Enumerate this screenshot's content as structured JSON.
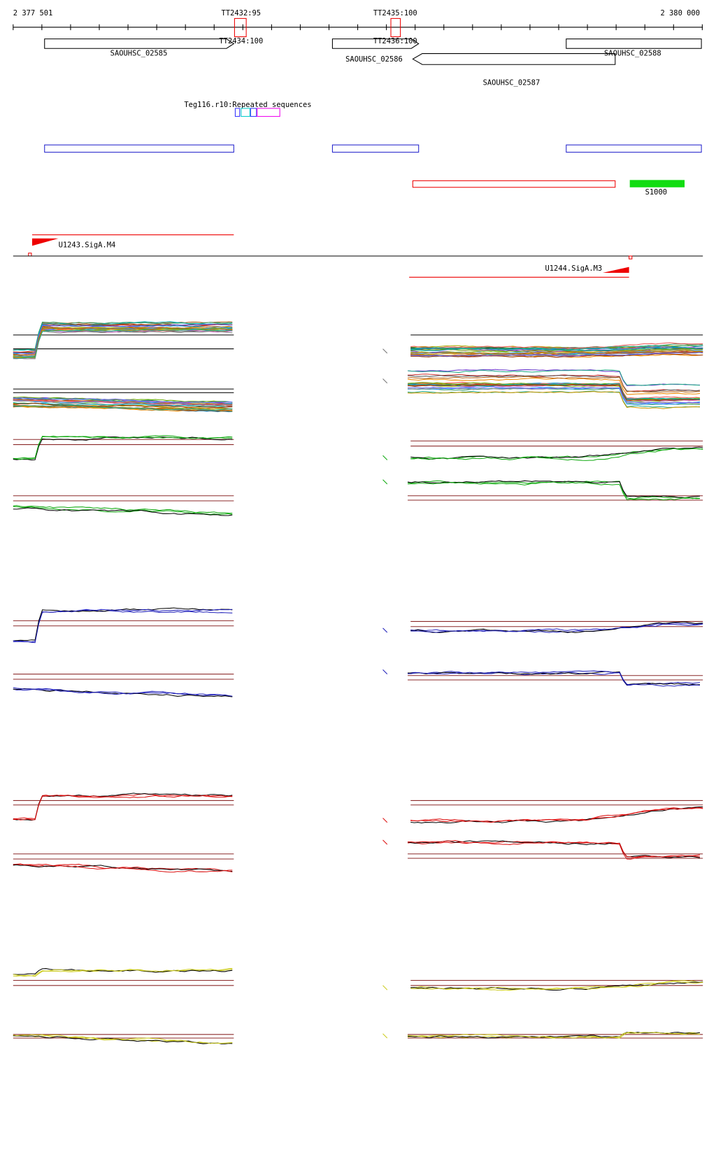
{
  "ruler": {
    "start": "2 377 501",
    "end": "2 380 000"
  },
  "terminators": [
    {
      "label": "TT2432:95"
    },
    {
      "label": "TT2435:100"
    },
    {
      "label": "TT2434:100"
    },
    {
      "label": "TT2436:100"
    }
  ],
  "genes": [
    {
      "label": "SAOUHSC_02585"
    },
    {
      "label": "SAOUHSC_02586"
    },
    {
      "label": "SAOUHSC_02587"
    },
    {
      "label": "SAOUHSC_02588"
    }
  ],
  "repeats": [
    {
      "label": "Teg116.r10:Repeated sequences"
    }
  ],
  "features": [
    {
      "label": "S1000"
    }
  ],
  "promoters": [
    {
      "label": "U1243.SigA.M4"
    },
    {
      "label": "U1244.SigA.M3"
    }
  ]
}
